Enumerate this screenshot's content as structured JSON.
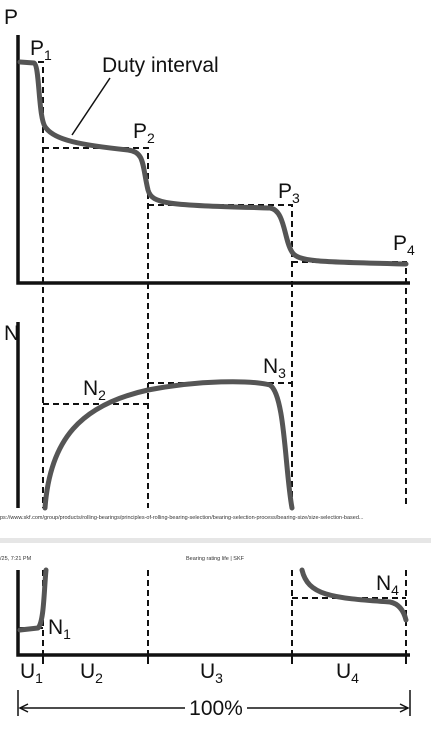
{
  "header": {
    "url": "ps://www.skf.com/group/products/rolling-bearings/principles-of-rolling-bearing-selection/bearing-selection-process/bearing-size/size-selection-based...",
    "datetime": "/25, 7:21 PM",
    "page_title": "Bearing rating life | SKF"
  },
  "diagram": {
    "power_axis": "P",
    "speed_axis": "N",
    "annotation": "Duty interval",
    "total": "100%",
    "power_levels": [
      {
        "symbol": "P",
        "index": "1"
      },
      {
        "symbol": "P",
        "index": "2"
      },
      {
        "symbol": "P",
        "index": "3"
      },
      {
        "symbol": "P",
        "index": "4"
      }
    ],
    "speeds": [
      {
        "symbol": "N",
        "index": "1"
      },
      {
        "symbol": "N",
        "index": "2"
      },
      {
        "symbol": "N",
        "index": "3"
      },
      {
        "symbol": "N",
        "index": "4"
      }
    ],
    "intervals": [
      {
        "symbol": "U",
        "index": "1"
      },
      {
        "symbol": "U",
        "index": "2"
      },
      {
        "symbol": "U",
        "index": "3"
      },
      {
        "symbol": "U",
        "index": "4"
      }
    ]
  }
}
